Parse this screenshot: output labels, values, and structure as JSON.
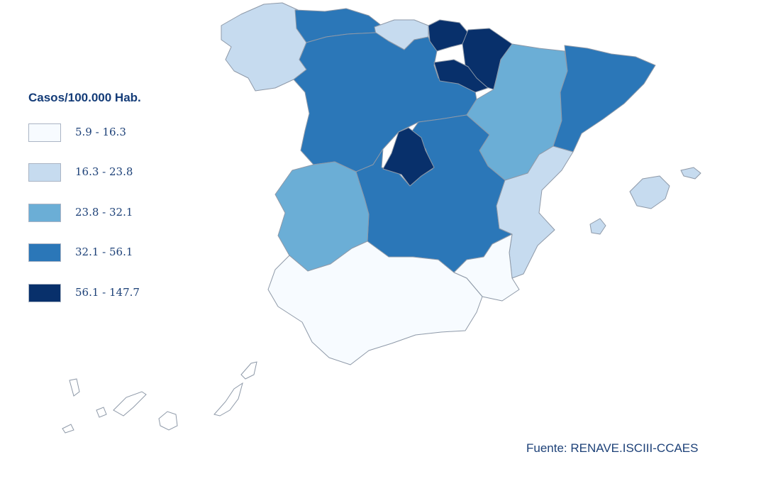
{
  "legend": {
    "title": "Casos/100.000 Hab.",
    "items": [
      {
        "label": "5.9 - 16.3",
        "color": "#f7fbff"
      },
      {
        "label": "16.3 - 23.8",
        "color": "#c6dbef"
      },
      {
        "label": "23.8 - 32.1",
        "color": "#6baed6"
      },
      {
        "label": "32.1 - 56.1",
        "color": "#2b77b8"
      },
      {
        "label": "56.1 - 147.7",
        "color": "#08306b"
      }
    ]
  },
  "source": "Fuente: RENAVE.ISCIII-CCAES",
  "regions": [
    {
      "name": "galicia",
      "class": 1
    },
    {
      "name": "asturias",
      "class": 3
    },
    {
      "name": "cantabria",
      "class": 1
    },
    {
      "name": "pais-vasco",
      "class": 4
    },
    {
      "name": "navarra",
      "class": 4
    },
    {
      "name": "la-rioja",
      "class": 4
    },
    {
      "name": "castilla-y-leon",
      "class": 3
    },
    {
      "name": "aragon",
      "class": 2
    },
    {
      "name": "cataluna",
      "class": 3
    },
    {
      "name": "madrid",
      "class": 4
    },
    {
      "name": "castilla-la-mancha",
      "class": 3
    },
    {
      "name": "extremadura",
      "class": 2
    },
    {
      "name": "comunidad-valenciana",
      "class": 1
    },
    {
      "name": "murcia",
      "class": 0
    },
    {
      "name": "andalucia",
      "class": 0
    },
    {
      "name": "baleares",
      "class": 1
    },
    {
      "name": "canarias",
      "class": 0
    }
  ]
}
